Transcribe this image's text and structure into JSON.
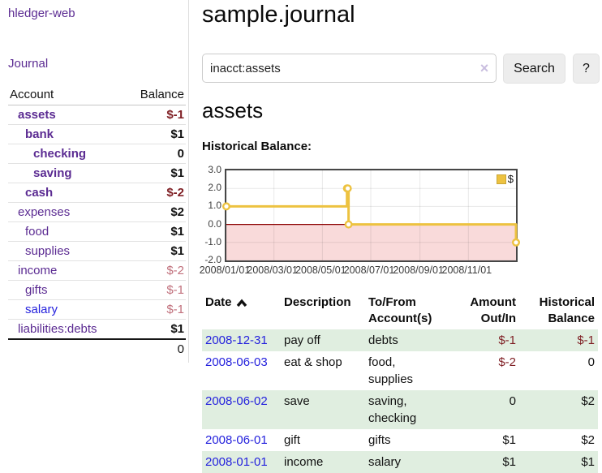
{
  "app": {
    "brand": "hledger-web"
  },
  "nav": {
    "journal": "Journal"
  },
  "sidebar": {
    "headers": {
      "account": "Account",
      "balance": "Balance"
    },
    "accounts": [
      {
        "name": "assets",
        "depth": 1,
        "bold": true,
        "balance": "$-1",
        "negative": true
      },
      {
        "name": "bank",
        "depth": 2,
        "bold": true,
        "balance": "$1",
        "negative": false
      },
      {
        "name": "checking",
        "depth": 3,
        "bold": true,
        "balance": "0",
        "negative": false
      },
      {
        "name": "saving",
        "depth": 3,
        "bold": true,
        "balance": "$1",
        "negative": false
      },
      {
        "name": "cash",
        "depth": 2,
        "bold": true,
        "balance": "$-2",
        "negative": true
      },
      {
        "name": "expenses",
        "depth": 1,
        "bold": false,
        "balance": "$2",
        "negative": false
      },
      {
        "name": "food",
        "depth": 2,
        "bold": false,
        "balance": "$1",
        "negative": false
      },
      {
        "name": "supplies",
        "depth": 2,
        "bold": false,
        "balance": "$1",
        "negative": false
      },
      {
        "name": "income",
        "depth": 1,
        "bold": false,
        "balance": "$-2",
        "negative": true
      },
      {
        "name": "gifts",
        "depth": 2,
        "bold": false,
        "balance": "$-1",
        "negative": true
      },
      {
        "name": "salary",
        "depth": 2,
        "bold": false,
        "balance": "$-1",
        "negative": true
      },
      {
        "name": "liabilities:debts",
        "depth": 1,
        "bold": false,
        "balance": "$1",
        "negative": false
      }
    ],
    "total": "0"
  },
  "main": {
    "title": "sample.journal",
    "search": {
      "value": "inacct:assets",
      "clear": "×",
      "button": "Search",
      "help": "?"
    },
    "account_heading": "assets",
    "section_label": "Historical Balance:"
  },
  "chart_data": {
    "type": "line",
    "step": true,
    "title": "Historical Balance:",
    "x_range": [
      "2008-01-01",
      "2008-12-31"
    ],
    "y_range": [
      -2,
      3
    ],
    "x_ticks": [
      {
        "pos": "2008-01-01",
        "label": "2008/01/01"
      },
      {
        "pos": "2008-03-01",
        "label": "2008/03/01"
      },
      {
        "pos": "2008-05-01",
        "label": "2008/05/01"
      },
      {
        "pos": "2008-07-01",
        "label": "2008/07/01"
      },
      {
        "pos": "2008-09-01",
        "label": "2008/09/01"
      },
      {
        "pos": "2008-11-01",
        "label": "2008/11/01"
      }
    ],
    "y_ticks": [
      {
        "value": 3,
        "label": "3.0"
      },
      {
        "value": 2,
        "label": "2.0"
      },
      {
        "value": 1,
        "label": "1.0"
      },
      {
        "value": 0,
        "label": "0.0"
      },
      {
        "value": -1,
        "label": "-1.0"
      },
      {
        "value": -2,
        "label": "-2.0"
      }
    ],
    "series": [
      {
        "name": "$",
        "color": "#edc240",
        "points": [
          [
            "2008-01-01",
            1
          ],
          [
            "2008-06-01",
            2
          ],
          [
            "2008-06-02",
            2
          ],
          [
            "2008-06-03",
            0
          ],
          [
            "2008-12-31",
            -1
          ]
        ]
      }
    ],
    "legend": {
      "label": "$",
      "position": "top-right",
      "swatch_color": "#edc240"
    },
    "negative_fill": "#f9dada",
    "zero_line_color": "#8b0000",
    "grid": true
  },
  "register": {
    "headers": {
      "date": "Date",
      "description": "Description",
      "tofrom1": "To/From",
      "tofrom2": "Account(s)",
      "amount1": "Amount",
      "amount2": "Out/In",
      "hist1": "Historical",
      "hist2": "Balance"
    },
    "rows": [
      {
        "date": "2008-12-31",
        "description": "pay off",
        "accounts": "debts",
        "amount": "$-1",
        "balance": "$-1"
      },
      {
        "date": "2008-06-03",
        "description": "eat & shop",
        "accounts": "food, supplies",
        "amount": "$-2",
        "balance": "0"
      },
      {
        "date": "2008-06-02",
        "description": "save",
        "accounts": "saving, checking",
        "amount": "0",
        "balance": "$2"
      },
      {
        "date": "2008-06-01",
        "description": "gift",
        "accounts": "gifts",
        "amount": "$1",
        "balance": "$2"
      },
      {
        "date": "2008-01-01",
        "description": "income",
        "accounts": "salary",
        "amount": "$1",
        "balance": "$1"
      }
    ]
  },
  "colors": {
    "accent_purple": "#5b2b92",
    "link_blue": "#2522dd",
    "negative_dark": "#7f1f24",
    "negative_light": "#c1707c",
    "row_green": "#e0eee0",
    "series_yellow": "#edc240",
    "negative_region_fill": "#f9dada",
    "zero_line": "#8b0000"
  }
}
